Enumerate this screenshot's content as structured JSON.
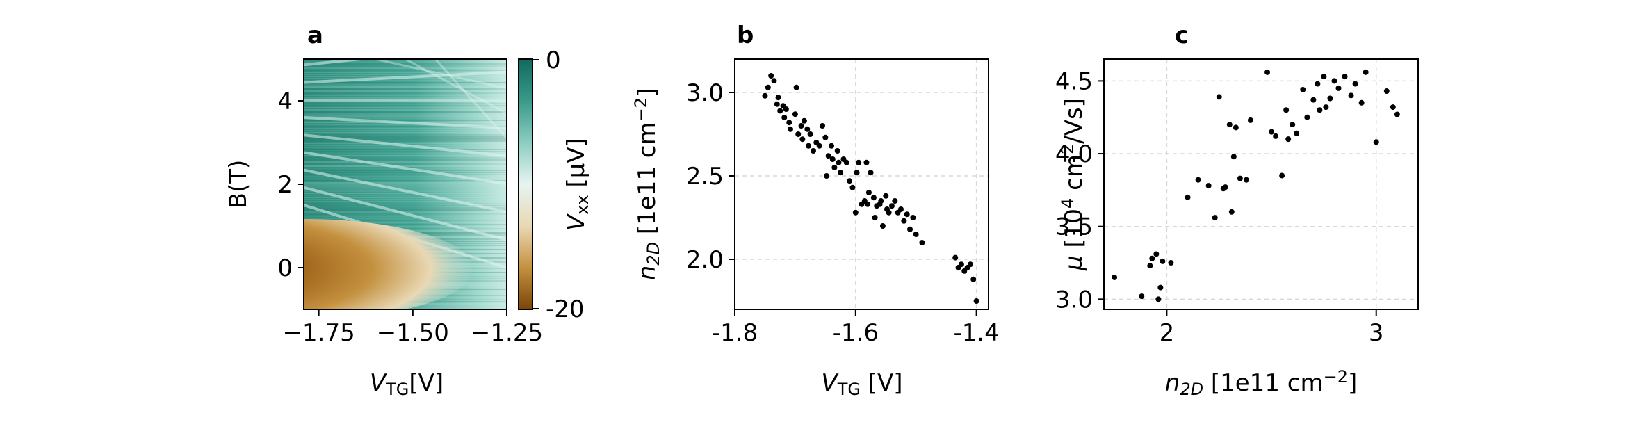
{
  "chart_data": [
    {
      "type": "heatmap",
      "panel_label": "a",
      "xlabel": {
        "main": "V",
        "sub": "TG",
        "rest": "[V]"
      },
      "ylabel": "B(T)",
      "xlim": [
        -1.79,
        -1.25
      ],
      "ylim": [
        -1,
        5
      ],
      "xticks": [
        -1.75,
        -1.5,
        -1.25
      ],
      "xtick_labels": [
        "−1.75",
        "−1.50",
        "−1.25"
      ],
      "yticks": [
        0,
        2,
        4
      ],
      "ytick_labels": [
        "0",
        "2",
        "4"
      ],
      "colorbar": {
        "label": {
          "main": "V",
          "sub": "xx",
          "rest": " [μV]"
        },
        "range": [
          -20,
          0
        ],
        "tick_labels": [
          "0",
          "-20"
        ],
        "colors": [
          "#7a4408",
          "#c4913f",
          "#e9d8b5",
          "#e6f4f1",
          "#8ccdc0",
          "#3a9a8a",
          "#12695f"
        ]
      }
    },
    {
      "type": "scatter",
      "panel_label": "b",
      "xlabel": {
        "main": "V",
        "sub": "TG",
        "rest": " [V]"
      },
      "ylabel": {
        "main": "n",
        "sub": "2D",
        "rest": " [1e11 cm",
        "sup": "−2",
        "end": "]"
      },
      "xlim": [
        -1.8,
        -1.38
      ],
      "ylim": [
        1.7,
        3.2
      ],
      "xticks": [
        -1.8,
        -1.6,
        -1.4
      ],
      "xtick_labels": [
        "-1.8",
        "-1.6",
        "-1.4"
      ],
      "yticks": [
        2.0,
        2.5,
        3.0
      ],
      "ytick_labels": [
        "2.0",
        "2.5",
        "3.0"
      ],
      "grid": true,
      "x": [
        -1.75,
        -1.745,
        -1.74,
        -1.735,
        -1.73,
        -1.728,
        -1.725,
        -1.72,
        -1.718,
        -1.715,
        -1.71,
        -1.708,
        -1.7,
        -1.698,
        -1.695,
        -1.69,
        -1.688,
        -1.685,
        -1.68,
        -1.678,
        -1.675,
        -1.67,
        -1.665,
        -1.66,
        -1.655,
        -1.65,
        -1.648,
        -1.645,
        -1.64,
        -1.638,
        -1.635,
        -1.63,
        -1.628,
        -1.625,
        -1.62,
        -1.615,
        -1.61,
        -1.605,
        -1.6,
        -1.598,
        -1.595,
        -1.59,
        -1.585,
        -1.582,
        -1.58,
        -1.578,
        -1.575,
        -1.57,
        -1.568,
        -1.565,
        -1.56,
        -1.558,
        -1.555,
        -1.55,
        -1.548,
        -1.545,
        -1.54,
        -1.535,
        -1.53,
        -1.525,
        -1.52,
        -1.515,
        -1.51,
        -1.505,
        -1.5,
        -1.49,
        -1.435,
        -1.43,
        -1.425,
        -1.42,
        -1.415,
        -1.41,
        -1.405,
        -1.4
      ],
      "y": [
        2.98,
        3.03,
        3.1,
        3.07,
        2.93,
        2.97,
        2.89,
        2.92,
        2.85,
        2.9,
        2.82,
        2.78,
        2.87,
        3.03,
        2.75,
        2.8,
        2.72,
        2.83,
        2.78,
        2.68,
        2.75,
        2.65,
        2.7,
        2.68,
        2.8,
        2.73,
        2.5,
        2.62,
        2.68,
        2.6,
        2.55,
        2.65,
        2.58,
        2.52,
        2.6,
        2.58,
        2.47,
        2.43,
        2.28,
        2.52,
        2.58,
        2.33,
        2.35,
        2.58,
        2.33,
        2.4,
        2.52,
        2.37,
        2.25,
        2.32,
        2.33,
        2.35,
        2.2,
        2.38,
        2.3,
        2.28,
        2.32,
        2.35,
        2.28,
        2.3,
        2.23,
        2.27,
        2.18,
        2.25,
        2.15,
        2.1,
        2.01,
        1.95,
        1.97,
        1.93,
        1.95,
        1.97,
        1.88,
        1.75
      ]
    },
    {
      "type": "scatter",
      "panel_label": "c",
      "xlabel": {
        "main": "n",
        "sub": "2D",
        "rest": " [1e11 cm",
        "sup": "−2",
        "end": "]"
      },
      "ylabel": {
        "main": "μ",
        "rest": " [10",
        "sup": "4",
        "end": " cm",
        "sup2": "2",
        "end2": "/Vs]"
      },
      "xlim": [
        1.7,
        3.2
      ],
      "ylim": [
        2.93,
        4.65
      ],
      "xticks": [
        2,
        3
      ],
      "xtick_labels": [
        "2",
        "3"
      ],
      "yticks": [
        3.0,
        3.5,
        4.0,
        4.5
      ],
      "ytick_labels": [
        "3.0",
        "3.5",
        "4.0",
        "4.5"
      ],
      "grid": true,
      "x": [
        1.75,
        1.88,
        1.92,
        1.93,
        1.95,
        1.96,
        1.97,
        1.98,
        2.02,
        2.1,
        2.15,
        2.2,
        2.23,
        2.25,
        2.27,
        2.28,
        2.3,
        2.31,
        2.32,
        2.33,
        2.35,
        2.38,
        2.4,
        2.48,
        2.5,
        2.52,
        2.55,
        2.57,
        2.58,
        2.6,
        2.62,
        2.65,
        2.67,
        2.7,
        2.72,
        2.73,
        2.75,
        2.76,
        2.78,
        2.8,
        2.82,
        2.85,
        2.88,
        2.9,
        2.93,
        2.95,
        3.0,
        3.05,
        3.08,
        3.1
      ],
      "y": [
        3.15,
        3.02,
        3.23,
        3.28,
        3.31,
        3.0,
        3.08,
        3.26,
        3.25,
        3.7,
        3.82,
        3.78,
        3.56,
        4.39,
        3.76,
        3.77,
        4.2,
        3.6,
        3.98,
        4.18,
        3.83,
        3.82,
        4.23,
        4.56,
        4.15,
        4.12,
        3.85,
        4.3,
        4.1,
        4.2,
        4.14,
        4.44,
        4.25,
        4.37,
        4.48,
        4.3,
        4.53,
        4.32,
        4.38,
        4.5,
        4.45,
        4.53,
        4.4,
        4.48,
        4.35,
        4.56,
        4.08,
        4.43,
        4.32,
        4.27
      ]
    }
  ]
}
